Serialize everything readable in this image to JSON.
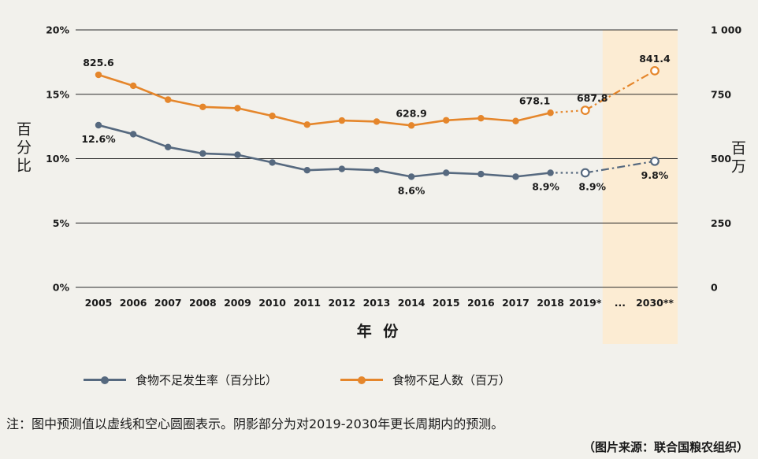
{
  "colors": {
    "background": "#f2f1ec",
    "grid": "#2b2b2b",
    "text": "#1a1a1a"
  },
  "note": "注：图中预测值以虚线和空心圆圈表示。阴影部分为对2019-2030年更长周期内的预测。",
  "source": "（图片来源：联合国粮农组织）",
  "chart_data": {
    "type": "line",
    "x_axis_title": "年 份",
    "categories": [
      "2005",
      "2006",
      "2007",
      "2008",
      "2009",
      "2010",
      "2011",
      "2012",
      "2013",
      "2014",
      "2015",
      "2016",
      "2017",
      "2018",
      "2019*",
      "...",
      "2030**"
    ],
    "left_axis": {
      "title": "百分比",
      "min": 0,
      "max": 20,
      "ticks": [
        "0%",
        "5%",
        "10%",
        "15%",
        "20%"
      ]
    },
    "right_axis": {
      "title": "百万",
      "min": 0,
      "max": 1000,
      "ticks": [
        "0",
        "250",
        "500",
        "750",
        "1 000"
      ]
    },
    "series": [
      {
        "name": "食物不足发生率（百分比）",
        "axis": "left",
        "color": "#56697f",
        "values": [
          12.6,
          11.9,
          10.9,
          10.4,
          10.3,
          9.7,
          9.1,
          9.2,
          9.1,
          8.6,
          8.9,
          8.8,
          8.6,
          8.9,
          8.9,
          null,
          9.8
        ],
        "labels": {
          "0": "12.6%",
          "9": "8.6%",
          "13": "8.9%",
          "14": "8.9%",
          "16": "9.8%"
        }
      },
      {
        "name": "食物不足人数（百万）",
        "axis": "right",
        "color": "#e5862b",
        "values": [
          825.6,
          783,
          729,
          701,
          696,
          666,
          632,
          648,
          644,
          628.9,
          649,
          657,
          646,
          678.1,
          687.8,
          null,
          841.4
        ],
        "labels": {
          "0": "825.6",
          "9": "628.9",
          "13": "678.1",
          "14": "687.8",
          "16": "841.4"
        }
      }
    ],
    "projection": {
      "dashed_from_category": "2018",
      "open_circle_categories": [
        "2019*",
        "2030**"
      ],
      "shaded_region": {
        "from_category": "2019*",
        "to_category": "2030**",
        "color": "#fcecd3"
      }
    },
    "legend_position": "bottom",
    "grid": true
  }
}
